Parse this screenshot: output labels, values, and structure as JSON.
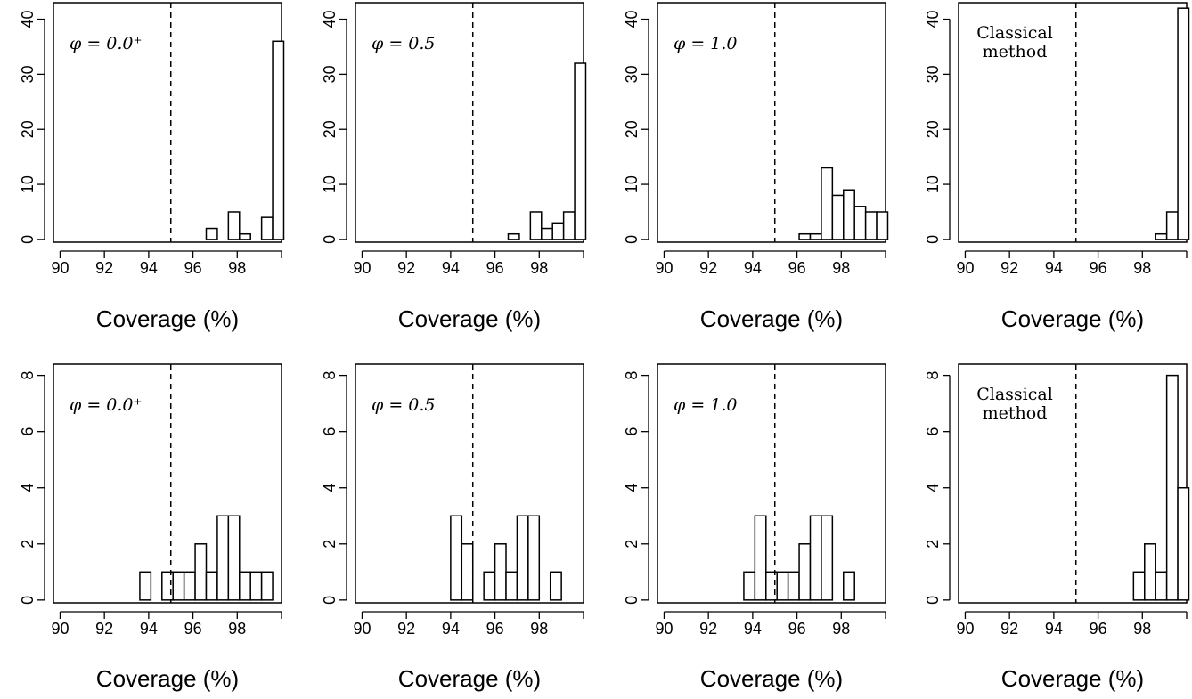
{
  "chart_data": [
    {
      "type": "bar",
      "annotation": [
        "φ = 0.0⁺"
      ],
      "xlabel": "Coverage (%)",
      "xticks": [
        90,
        92,
        94,
        96,
        98
      ],
      "xlim": [
        89.7,
        100
      ],
      "ylim": [
        -0.5,
        43
      ],
      "yticks": [
        0,
        10,
        20,
        30,
        40
      ],
      "reference_line_x": 95,
      "bins": [
        {
          "x0": 96.6,
          "x1": 97.1,
          "count": 2
        },
        {
          "x0": 97.1,
          "x1": 97.6,
          "count": 0
        },
        {
          "x0": 97.6,
          "x1": 98.1,
          "count": 5
        },
        {
          "x0": 98.1,
          "x1": 98.6,
          "count": 1
        },
        {
          "x0": 98.6,
          "x1": 99.1,
          "count": 0
        },
        {
          "x0": 99.1,
          "x1": 99.6,
          "count": 4
        },
        {
          "x0": 99.6,
          "x1": 100.1,
          "count": 36
        }
      ]
    },
    {
      "type": "bar",
      "annotation": [
        "φ = 0.5"
      ],
      "xlabel": "Coverage (%)",
      "xticks": [
        90,
        92,
        94,
        96,
        98
      ],
      "xlim": [
        89.7,
        100
      ],
      "ylim": [
        -0.5,
        43
      ],
      "yticks": [
        0,
        10,
        20,
        30,
        40
      ],
      "reference_line_x": 95,
      "bins": [
        {
          "x0": 96.6,
          "x1": 97.1,
          "count": 1
        },
        {
          "x0": 97.1,
          "x1": 97.6,
          "count": 0
        },
        {
          "x0": 97.6,
          "x1": 98.1,
          "count": 5
        },
        {
          "x0": 98.1,
          "x1": 98.6,
          "count": 2
        },
        {
          "x0": 98.6,
          "x1": 99.1,
          "count": 3
        },
        {
          "x0": 99.1,
          "x1": 99.6,
          "count": 5
        },
        {
          "x0": 99.6,
          "x1": 100.1,
          "count": 32
        }
      ]
    },
    {
      "type": "bar",
      "annotation": [
        "φ = 1.0"
      ],
      "xlabel": "Coverage (%)",
      "xticks": [
        90,
        92,
        94,
        96,
        98
      ],
      "xlim": [
        89.7,
        100
      ],
      "ylim": [
        -0.5,
        43
      ],
      "yticks": [
        0,
        10,
        20,
        30,
        40
      ],
      "reference_line_x": 95,
      "bins": [
        {
          "x0": 96.1,
          "x1": 96.6,
          "count": 1
        },
        {
          "x0": 96.6,
          "x1": 97.1,
          "count": 1
        },
        {
          "x0": 97.1,
          "x1": 97.6,
          "count": 13
        },
        {
          "x0": 97.6,
          "x1": 98.1,
          "count": 8
        },
        {
          "x0": 98.1,
          "x1": 98.6,
          "count": 9
        },
        {
          "x0": 98.6,
          "x1": 99.1,
          "count": 6
        },
        {
          "x0": 99.1,
          "x1": 99.6,
          "count": 5
        },
        {
          "x0": 99.6,
          "x1": 100.1,
          "count": 5
        }
      ]
    },
    {
      "type": "bar",
      "annotation": [
        "Classical",
        "method"
      ],
      "xlabel": "Coverage (%)",
      "xticks": [
        90,
        92,
        94,
        96,
        98
      ],
      "xlim": [
        89.7,
        100
      ],
      "ylim": [
        -0.5,
        43
      ],
      "yticks": [
        0,
        10,
        20,
        30,
        40
      ],
      "reference_line_x": 95,
      "bins": [
        {
          "x0": 98.6,
          "x1": 99.1,
          "count": 1
        },
        {
          "x0": 99.1,
          "x1": 99.6,
          "count": 5
        },
        {
          "x0": 99.6,
          "x1": 100.1,
          "count": 42
        }
      ]
    },
    {
      "type": "bar",
      "annotation": [
        "φ = 0.0⁺"
      ],
      "xlabel": "Coverage (%)",
      "xticks": [
        90,
        92,
        94,
        96,
        98
      ],
      "xlim": [
        89.7,
        100
      ],
      "ylim": [
        -0.1,
        8.4
      ],
      "yticks": [
        0,
        2,
        4,
        6,
        8
      ],
      "reference_line_x": 95,
      "bins": [
        {
          "x0": 93.6,
          "x1": 94.1,
          "count": 1
        },
        {
          "x0": 94.1,
          "x1": 94.6,
          "count": 0
        },
        {
          "x0": 94.6,
          "x1": 95.1,
          "count": 1
        },
        {
          "x0": 95.1,
          "x1": 95.6,
          "count": 1
        },
        {
          "x0": 95.6,
          "x1": 96.1,
          "count": 1
        },
        {
          "x0": 96.1,
          "x1": 96.6,
          "count": 2
        },
        {
          "x0": 96.6,
          "x1": 97.1,
          "count": 1
        },
        {
          "x0": 97.1,
          "x1": 97.6,
          "count": 3
        },
        {
          "x0": 97.6,
          "x1": 98.1,
          "count": 3
        },
        {
          "x0": 98.1,
          "x1": 98.6,
          "count": 1
        },
        {
          "x0": 98.6,
          "x1": 99.1,
          "count": 1
        },
        {
          "x0": 99.1,
          "x1": 99.6,
          "count": 1
        }
      ]
    },
    {
      "type": "bar",
      "annotation": [
        "φ = 0.5"
      ],
      "xlabel": "Coverage (%)",
      "xticks": [
        90,
        92,
        94,
        96,
        98
      ],
      "xlim": [
        89.7,
        100
      ],
      "ylim": [
        -0.1,
        8.4
      ],
      "yticks": [
        0,
        2,
        4,
        6,
        8
      ],
      "reference_line_x": 95,
      "bins": [
        {
          "x0": 94.0,
          "x1": 94.5,
          "count": 3
        },
        {
          "x0": 94.5,
          "x1": 95.0,
          "count": 2
        },
        {
          "x0": 95.0,
          "x1": 95.5,
          "count": 0
        },
        {
          "x0": 95.5,
          "x1": 96.0,
          "count": 1
        },
        {
          "x0": 96.0,
          "x1": 96.5,
          "count": 2
        },
        {
          "x0": 96.5,
          "x1": 97.0,
          "count": 1
        },
        {
          "x0": 97.0,
          "x1": 97.5,
          "count": 3
        },
        {
          "x0": 97.5,
          "x1": 98.0,
          "count": 3
        },
        {
          "x0": 98.0,
          "x1": 98.5,
          "count": 0
        },
        {
          "x0": 98.5,
          "x1": 99.0,
          "count": 1
        }
      ]
    },
    {
      "type": "bar",
      "annotation": [
        "φ = 1.0"
      ],
      "xlabel": "Coverage (%)",
      "xticks": [
        90,
        92,
        94,
        96,
        98
      ],
      "xlim": [
        89.7,
        100
      ],
      "ylim": [
        -0.1,
        8.4
      ],
      "yticks": [
        0,
        2,
        4,
        6,
        8
      ],
      "reference_line_x": 95,
      "bins": [
        {
          "x0": 93.6,
          "x1": 94.1,
          "count": 1
        },
        {
          "x0": 94.1,
          "x1": 94.6,
          "count": 3
        },
        {
          "x0": 94.6,
          "x1": 95.1,
          "count": 1
        },
        {
          "x0": 95.1,
          "x1": 95.6,
          "count": 1
        },
        {
          "x0": 95.6,
          "x1": 96.1,
          "count": 1
        },
        {
          "x0": 96.1,
          "x1": 96.6,
          "count": 2
        },
        {
          "x0": 96.6,
          "x1": 97.1,
          "count": 3
        },
        {
          "x0": 97.1,
          "x1": 97.6,
          "count": 3
        },
        {
          "x0": 97.6,
          "x1": 98.1,
          "count": 0
        },
        {
          "x0": 98.1,
          "x1": 98.6,
          "count": 1
        }
      ]
    },
    {
      "type": "bar",
      "annotation": [
        "Classical",
        "method"
      ],
      "xlabel": "Coverage (%)",
      "xticks": [
        90,
        92,
        94,
        96,
        98
      ],
      "xlim": [
        89.7,
        100
      ],
      "ylim": [
        -0.1,
        8.4
      ],
      "yticks": [
        0,
        2,
        4,
        6,
        8
      ],
      "reference_line_x": 95,
      "bins": [
        {
          "x0": 97.6,
          "x1": 98.1,
          "count": 1
        },
        {
          "x0": 98.1,
          "x1": 98.6,
          "count": 2
        },
        {
          "x0": 98.6,
          "x1": 99.1,
          "count": 1
        },
        {
          "x0": 99.1,
          "x1": 99.6,
          "count": 8
        },
        {
          "x0": 99.6,
          "x1": 100.1,
          "count": 4
        }
      ]
    }
  ]
}
